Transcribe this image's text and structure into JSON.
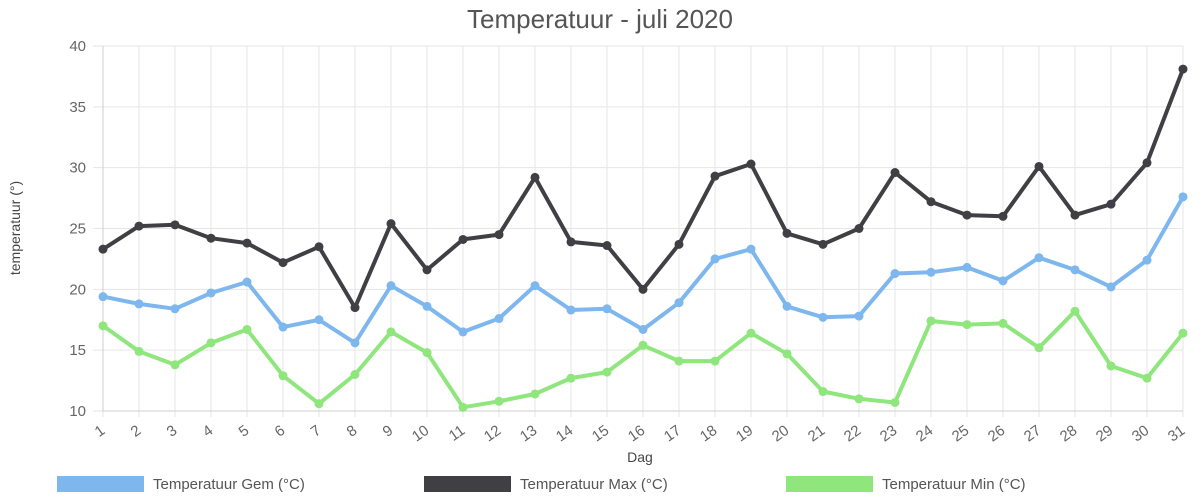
{
  "chart_data": {
    "type": "line",
    "title": "Temperatuur - juli 2020",
    "xlabel": "Dag",
    "ylabel": "temperatuur (°)",
    "ylim": [
      10,
      40
    ],
    "y_ticks": [
      "10",
      "15",
      "20",
      "25",
      "30",
      "35",
      "40"
    ],
    "grid": true,
    "legend_position": "bottom",
    "categories": [
      "1",
      "2",
      "3",
      "4",
      "5",
      "6",
      "7",
      "8",
      "9",
      "10",
      "11",
      "12",
      "13",
      "14",
      "15",
      "16",
      "17",
      "18",
      "19",
      "20",
      "21",
      "22",
      "23",
      "24",
      "25",
      "26",
      "27",
      "28",
      "29",
      "30",
      "31"
    ],
    "series": [
      {
        "name": "Temperatuur Gem (°C)",
        "color": "#7eb6ee",
        "values": [
          19.4,
          18.8,
          18.4,
          19.7,
          20.6,
          16.9,
          17.5,
          15.6,
          20.3,
          18.6,
          16.5,
          17.6,
          20.3,
          18.3,
          18.4,
          16.7,
          18.9,
          22.5,
          23.3,
          18.6,
          17.7,
          17.8,
          21.3,
          21.4,
          21.8,
          20.7,
          22.6,
          21.6,
          20.2,
          22.4,
          27.6
        ]
      },
      {
        "name": "Temperatuur Max (°C)",
        "color": "#404044",
        "values": [
          23.3,
          25.2,
          25.3,
          24.2,
          23.8,
          22.2,
          23.5,
          18.5,
          25.4,
          21.6,
          24.1,
          24.5,
          29.2,
          23.9,
          23.6,
          20.0,
          23.7,
          29.3,
          30.3,
          24.6,
          23.7,
          25.0,
          29.6,
          27.2,
          26.1,
          26.0,
          30.1,
          26.1,
          27.0,
          30.4,
          38.1
        ]
      },
      {
        "name": "Temperatuur Min (°C)",
        "color": "#8ee67c",
        "values": [
          17.0,
          14.9,
          13.8,
          15.6,
          16.7,
          12.9,
          10.6,
          13.0,
          16.5,
          14.8,
          10.3,
          10.8,
          11.4,
          12.7,
          13.2,
          15.4,
          14.1,
          14.1,
          16.4,
          14.7,
          11.6,
          11.0,
          10.7,
          17.4,
          17.1,
          17.2,
          15.2,
          18.2,
          13.7,
          12.7,
          16.4
        ]
      }
    ]
  }
}
